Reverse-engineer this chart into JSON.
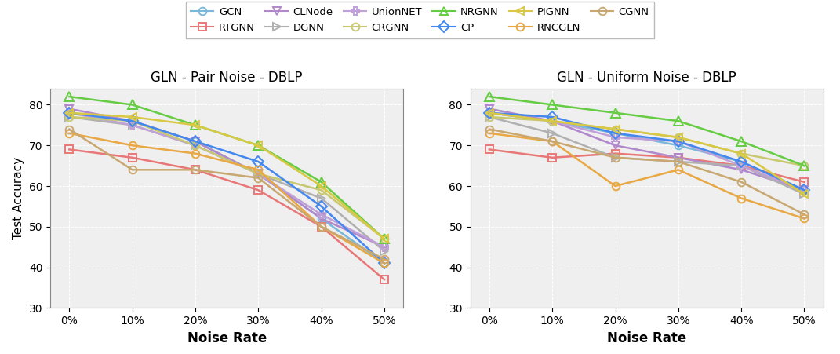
{
  "noise_rates": [
    0,
    10,
    20,
    30,
    40,
    50
  ],
  "noise_rate_labels": [
    "0%",
    "10%",
    "20%",
    "30%",
    "40%",
    "50%"
  ],
  "title1": "GLN - Pair Noise - DBLP",
  "title2": "GLN - Uniform Noise - DBLP",
  "xlabel": "Noise Rate",
  "ylabel": "Test Accuracy",
  "ylim": [
    30,
    85
  ],
  "yticks": [
    30,
    40,
    50,
    60,
    70,
    80
  ],
  "series": [
    {
      "name": "GCN",
      "color": "#7ab8d9",
      "marker": "o",
      "markersize": 7,
      "pair": [
        78,
        76,
        71,
        63,
        52,
        41
      ],
      "uniform": [
        78,
        76,
        73,
        70,
        66,
        59
      ]
    },
    {
      "name": "RTGNN",
      "color": "#e87878",
      "marker": "s",
      "markersize": 7,
      "pair": [
        69,
        67,
        64,
        59,
        50,
        37
      ],
      "uniform": [
        69,
        67,
        68,
        67,
        65,
        61
      ]
    },
    {
      "name": "CLNode",
      "color": "#b088cc",
      "marker": "v",
      "markersize": 7,
      "pair": [
        79,
        76,
        71,
        63,
        52,
        45
      ],
      "uniform": [
        79,
        76,
        70,
        67,
        64,
        59
      ]
    },
    {
      "name": "DGNN",
      "color": "#b0b0b0",
      "marker": ">",
      "markersize": 7,
      "pair": [
        77,
        75,
        70,
        63,
        57,
        44
      ],
      "uniform": [
        77,
        73,
        67,
        66,
        65,
        58
      ]
    },
    {
      "name": "UnionNET",
      "color": "#c0a0d8",
      "marker": "P",
      "markersize": 7,
      "pair": [
        78,
        75,
        70,
        63,
        53,
        45
      ],
      "uniform": [
        78,
        76,
        72,
        71,
        65,
        59
      ]
    },
    {
      "name": "CRGNN",
      "color": "#c8c870",
      "marker": "o",
      "markersize": 7,
      "pair": [
        77,
        76,
        70,
        63,
        59,
        47
      ],
      "uniform": [
        77,
        76,
        74,
        72,
        68,
        65
      ]
    },
    {
      "name": "NRGNN",
      "color": "#66cc44",
      "marker": "^",
      "markersize": 8,
      "pair": [
        82,
        80,
        75,
        70,
        61,
        47
      ],
      "uniform": [
        82,
        80,
        78,
        76,
        71,
        65
      ]
    },
    {
      "name": "CP",
      "color": "#4488ee",
      "marker": "D",
      "markersize": 7,
      "pair": [
        78,
        76,
        71,
        66,
        55,
        41
      ],
      "uniform": [
        78,
        77,
        73,
        71,
        66,
        59
      ]
    },
    {
      "name": "PIGNN",
      "color": "#d8c844",
      "marker": "<",
      "markersize": 7,
      "pair": [
        78,
        77,
        75,
        70,
        60,
        47
      ],
      "uniform": [
        78,
        76,
        74,
        72,
        68,
        58
      ]
    },
    {
      "name": "RNCGLN",
      "color": "#e8a844",
      "marker": "o",
      "markersize": 7,
      "pair": [
        73,
        70,
        68,
        64,
        50,
        41
      ],
      "uniform": [
        73,
        71,
        60,
        64,
        57,
        52
      ]
    },
    {
      "name": "CGNN",
      "color": "#c8a870",
      "marker": "o",
      "markersize": 7,
      "pair": [
        74,
        64,
        64,
        62,
        50,
        42
      ],
      "uniform": [
        74,
        71,
        67,
        66,
        61,
        53
      ]
    }
  ],
  "legend_order": [
    "GCN",
    "RTGNN",
    "CLNode",
    "DGNN",
    "UnionNET",
    "CRGNN",
    "NRGNN",
    "CP",
    "PIGNN",
    "RNCGLN",
    "CGNN"
  ],
  "background_color": "#efefef"
}
